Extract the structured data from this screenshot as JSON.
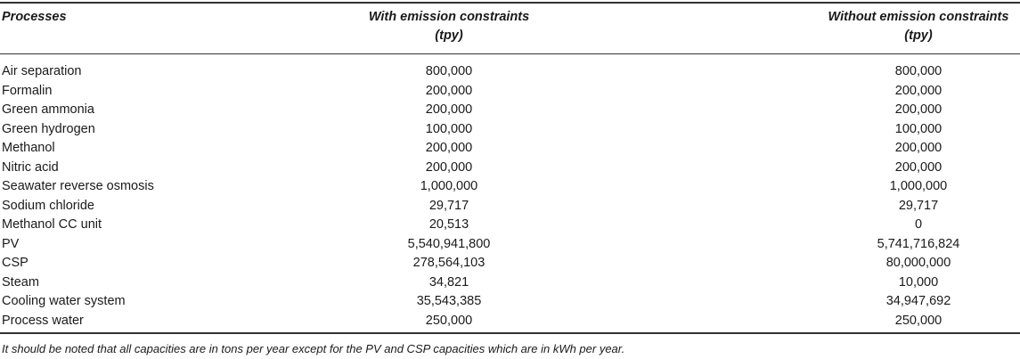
{
  "table": {
    "headers": [
      {
        "line1": "Processes",
        "line2": ""
      },
      {
        "line1": "With emission constraints",
        "line2": "(tpy)"
      },
      {
        "line1": "Without emission constraints",
        "line2": "(tpy)"
      }
    ],
    "rows": [
      [
        "Air separation",
        "800,000",
        "800,000"
      ],
      [
        "Formalin",
        "200,000",
        "200,000"
      ],
      [
        "Green ammonia",
        "200,000",
        "200,000"
      ],
      [
        "Green hydrogen",
        "100,000",
        "100,000"
      ],
      [
        "Methanol",
        "200,000",
        "200,000"
      ],
      [
        "Nitric acid",
        "200,000",
        "200,000"
      ],
      [
        "Seawater reverse osmosis",
        "1,000,000",
        "1,000,000"
      ],
      [
        "Sodium chloride",
        "29,717",
        "29,717"
      ],
      [
        "Methanol CC unit",
        "20,513",
        "0"
      ],
      [
        "PV",
        "5,540,941,800",
        "5,741,716,824"
      ],
      [
        "CSP",
        "278,564,103",
        "80,000,000"
      ],
      [
        "Steam",
        "34,821",
        "10,000"
      ],
      [
        "Cooling water system",
        "35,543,385",
        "34,947,692"
      ],
      [
        "Process water",
        "250,000",
        "250,000"
      ]
    ],
    "footnote": "It should be noted that all capacities are in tons per year except for the PV and CSP capacities which are in kWh per year."
  }
}
